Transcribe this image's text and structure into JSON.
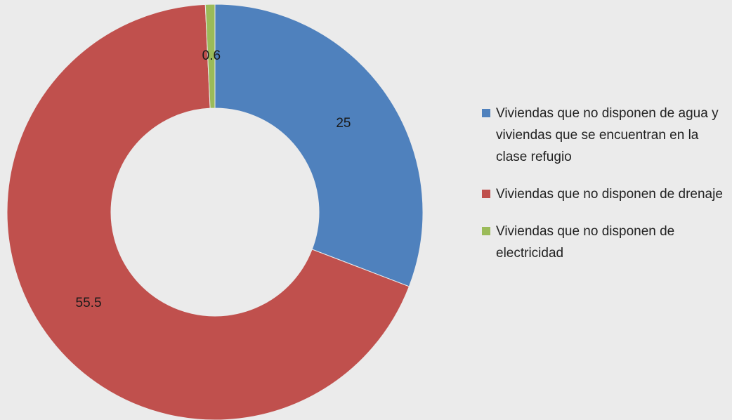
{
  "chart_data": {
    "type": "donut",
    "categories": [
      "Viviendas que no disponen de agua y viviendas que se encuentran en la clase refugio",
      "Viviendas que no disponen de drenaje",
      "Viviendas que no disponen de electricidad"
    ],
    "values": [
      25,
      55.5,
      0.6
    ],
    "colors": [
      "#4f81bd",
      "#c0504d",
      "#9bbb59"
    ],
    "legend": "right"
  }
}
